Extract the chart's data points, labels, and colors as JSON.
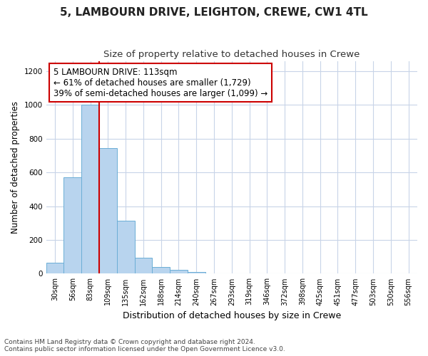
{
  "title": "5, LAMBOURN DRIVE, LEIGHTON, CREWE, CW1 4TL",
  "subtitle": "Size of property relative to detached houses in Crewe",
  "xlabel": "Distribution of detached houses by size in Crewe",
  "ylabel": "Number of detached properties",
  "footnote1": "Contains HM Land Registry data © Crown copyright and database right 2024.",
  "footnote2": "Contains public sector information licensed under the Open Government Licence v3.0.",
  "categories": [
    "30sqm",
    "56sqm",
    "83sqm",
    "109sqm",
    "135sqm",
    "162sqm",
    "188sqm",
    "214sqm",
    "240sqm",
    "267sqm",
    "293sqm",
    "319sqm",
    "346sqm",
    "372sqm",
    "398sqm",
    "425sqm",
    "451sqm",
    "477sqm",
    "503sqm",
    "530sqm",
    "556sqm"
  ],
  "values": [
    65,
    570,
    1000,
    745,
    315,
    95,
    40,
    22,
    10,
    0,
    0,
    0,
    0,
    0,
    0,
    0,
    0,
    0,
    0,
    0,
    0
  ],
  "bar_color": "#b8d4ee",
  "bar_edge_color": "#6baed6",
  "vline_color": "#cc0000",
  "vline_x_index": 3,
  "annotation_text": "5 LAMBOURN DRIVE: 113sqm\n← 61% of detached houses are smaller (1,729)\n39% of semi-detached houses are larger (1,099) →",
  "annotation_box_facecolor": "#ffffff",
  "annotation_box_edgecolor": "#cc0000",
  "ylim": [
    0,
    1260
  ],
  "yticks": [
    0,
    200,
    400,
    600,
    800,
    1000,
    1200
  ],
  "bg_color": "#ffffff",
  "grid_color": "#c8d4e8",
  "title_fontsize": 11,
  "subtitle_fontsize": 9.5,
  "ylabel_fontsize": 8.5,
  "xlabel_fontsize": 9,
  "tick_fontsize": 7,
  "footnote_fontsize": 6.5
}
